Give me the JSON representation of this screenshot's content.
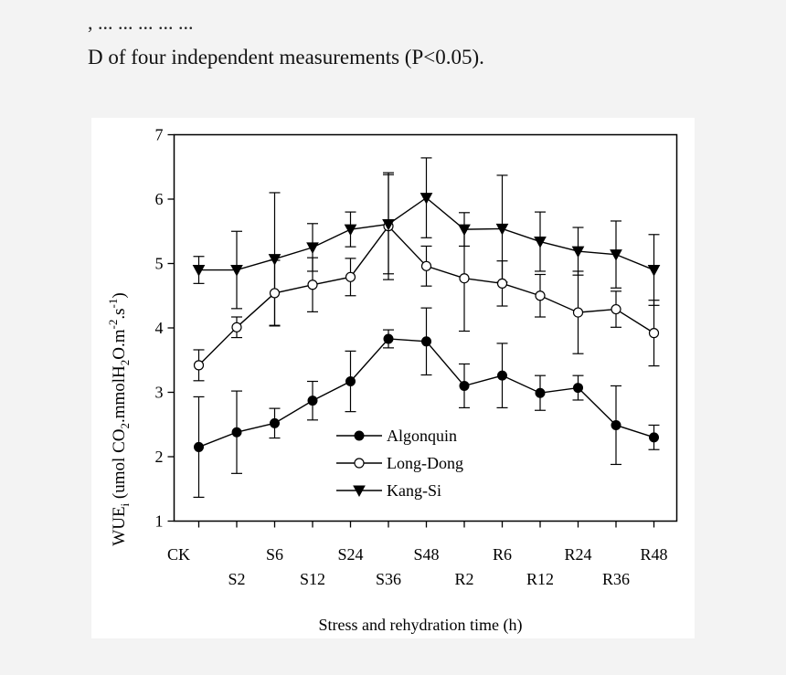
{
  "caption": {
    "line1": ", ... ... ... ... ...",
    "line2": "D of four independent measurements (P<0.05)."
  },
  "chart_data": {
    "type": "line",
    "title": "",
    "xlabel": "Stress and rehydration time (h)",
    "ylabel": "WUEi (umol CO2.mmolH2O.m-2.s-1)",
    "ylim": [
      1,
      7
    ],
    "yticks": [
      1,
      2,
      3,
      4,
      5,
      6,
      7
    ],
    "categories": [
      "CK",
      "S2",
      "S6",
      "S12",
      "S24",
      "S36",
      "S48",
      "R2",
      "R6",
      "R12",
      "R24",
      "R36",
      "R48"
    ],
    "grid": false,
    "legend_position": "bottom-center",
    "series": [
      {
        "name": "Algonquin",
        "marker": "filled-circle",
        "values": [
          2.15,
          2.38,
          2.52,
          2.87,
          3.17,
          3.83,
          3.79,
          3.1,
          3.26,
          2.99,
          3.07,
          2.49,
          2.3
        ],
        "errors": [
          0.78,
          0.64,
          0.23,
          0.3,
          0.47,
          0.14,
          0.52,
          0.34,
          0.5,
          0.27,
          0.19,
          0.61,
          0.19
        ]
      },
      {
        "name": "Long-Dong",
        "marker": "open-circle",
        "values": [
          3.42,
          4.01,
          4.54,
          4.67,
          4.79,
          5.58,
          4.96,
          4.77,
          4.69,
          4.5,
          4.24,
          4.29,
          3.92
        ],
        "errors": [
          0.24,
          0.16,
          0.51,
          0.42,
          0.29,
          0.83,
          0.31,
          0.82,
          0.35,
          0.33,
          0.64,
          0.28,
          0.51
        ]
      },
      {
        "name": "Kang-Si",
        "marker": "filled-triangle-down",
        "values": [
          4.9,
          4.9,
          5.07,
          5.25,
          5.53,
          5.61,
          6.02,
          5.53,
          5.54,
          5.34,
          5.19,
          5.14,
          4.9
        ],
        "errors": [
          0.21,
          0.6,
          1.03,
          0.37,
          0.27,
          0.77,
          0.62,
          0.26,
          0.83,
          0.46,
          0.37,
          0.52,
          0.55
        ]
      }
    ]
  }
}
